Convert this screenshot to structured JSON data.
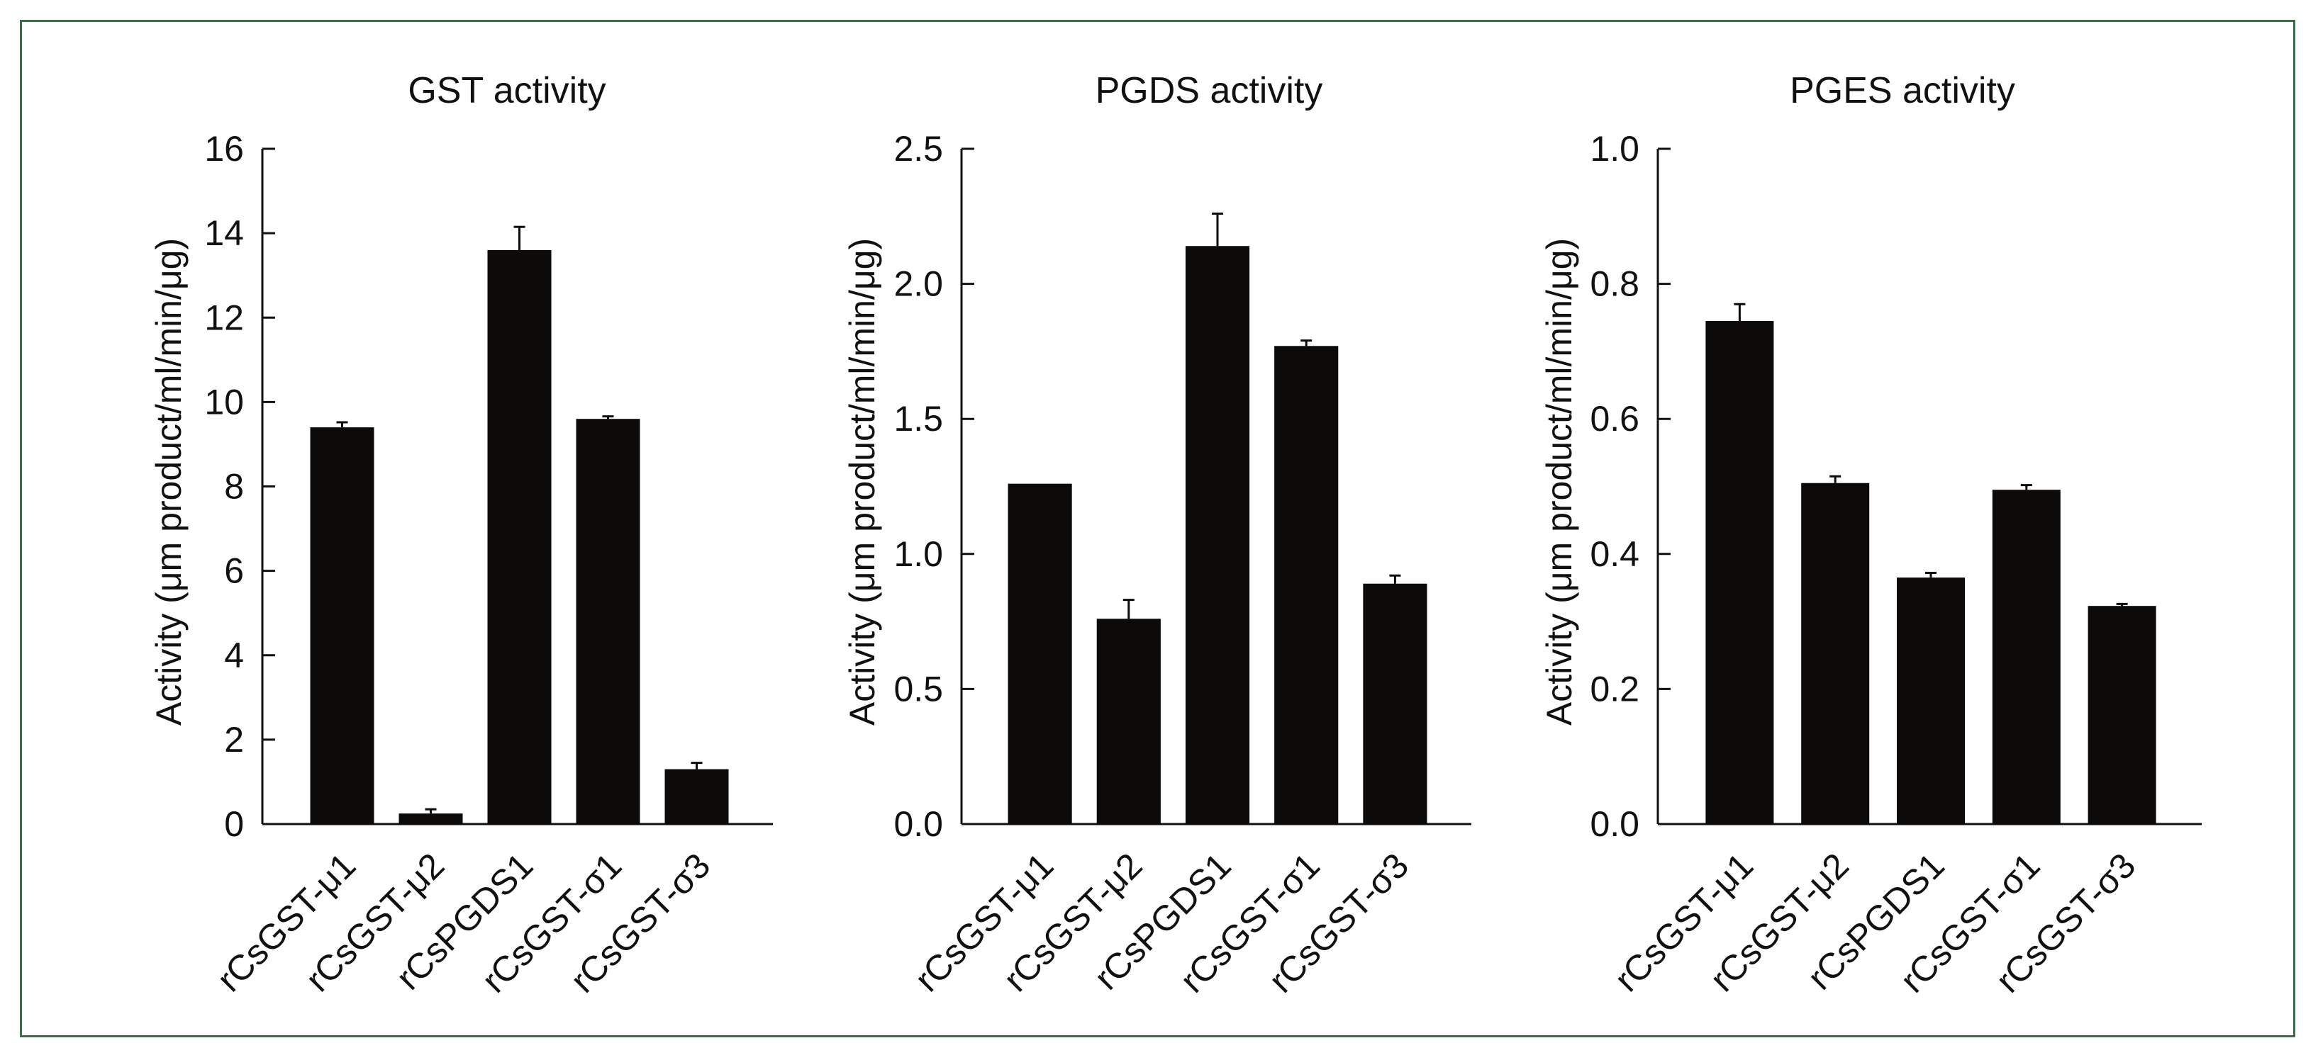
{
  "colors": {
    "bar": "#0d0a0a",
    "axis": "#111111",
    "frame": "#3e6b4c"
  },
  "chart_data": [
    {
      "type": "bar",
      "title": "GST activity",
      "ylabel": "Activity (μm product/ml/min/μg)",
      "xlabel": "",
      "categories": [
        "rCsGST-μ1",
        "rCsGST-μ2",
        "rCsPGDS1",
        "rCsGST-σ1",
        "rCsGST-σ3"
      ],
      "values": [
        9.4,
        0.25,
        13.6,
        9.6,
        1.3
      ],
      "errors": [
        0.12,
        0.1,
        0.55,
        0.06,
        0.15
      ],
      "ylim": [
        0,
        16
      ],
      "yticks": [
        0,
        2,
        4,
        6,
        8,
        10,
        12,
        14,
        16
      ],
      "ytick_labels": [
        "0",
        "2",
        "4",
        "6",
        "8",
        "10",
        "12",
        "14",
        "16"
      ]
    },
    {
      "type": "bar",
      "title": "PGDS activity",
      "ylabel": "Activity (μm product/ml/min/μg)",
      "xlabel": "",
      "categories": [
        "rCsGST-μ1",
        "rCsGST-μ2",
        "rCsPGDS1",
        "rCsGST-σ1",
        "rCsGST-σ3"
      ],
      "values": [
        1.26,
        0.76,
        2.14,
        1.77,
        0.89
      ],
      "errors": [
        0.0,
        0.07,
        0.12,
        0.02,
        0.03
      ],
      "ylim": [
        0,
        2.5
      ],
      "yticks": [
        0,
        0.5,
        1.0,
        1.5,
        2.0,
        2.5
      ],
      "ytick_labels": [
        "0.0",
        "0.5",
        "1.0",
        "1.5",
        "2.0",
        "2.5"
      ]
    },
    {
      "type": "bar",
      "title": "PGES activity",
      "ylabel": "Activity (μm product/ml/min/μg)",
      "xlabel": "",
      "categories": [
        "rCsGST-μ1",
        "rCsGST-μ2",
        "rCsPGDS1",
        "rCsGST-σ1",
        "rCsGST-σ3"
      ],
      "values": [
        0.745,
        0.505,
        0.365,
        0.495,
        0.323
      ],
      "errors": [
        0.025,
        0.01,
        0.007,
        0.007,
        0.003
      ],
      "ylim": [
        0,
        1.0
      ],
      "yticks": [
        0,
        0.2,
        0.4,
        0.6,
        0.8,
        1.0
      ],
      "ytick_labels": [
        "0.0",
        "0.2",
        "0.4",
        "0.6",
        "0.8",
        "1.0"
      ]
    }
  ]
}
